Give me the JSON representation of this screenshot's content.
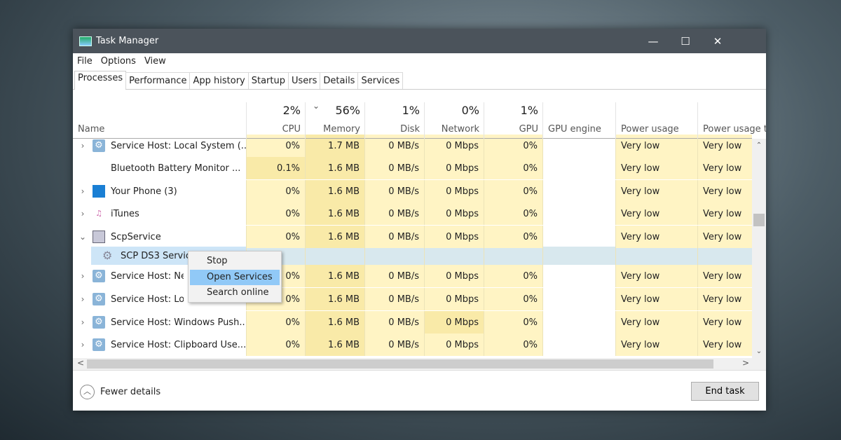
{
  "window": {
    "title": "Task Manager",
    "minimize": "—",
    "maximize": "☐",
    "close": "✕"
  },
  "menu": [
    "File",
    "Options",
    "View"
  ],
  "tabs": [
    "Processes",
    "Performance",
    "App history",
    "Startup",
    "Users",
    "Details",
    "Services"
  ],
  "active_tab": "Processes",
  "columns": [
    {
      "key": "name",
      "label": "Name",
      "pct": ""
    },
    {
      "key": "cpu",
      "label": "CPU",
      "pct": "2%"
    },
    {
      "key": "memory",
      "label": "Memory",
      "pct": "56%",
      "sorted": true
    },
    {
      "key": "disk",
      "label": "Disk",
      "pct": "1%"
    },
    {
      "key": "network",
      "label": "Network",
      "pct": "0%"
    },
    {
      "key": "gpu",
      "label": "GPU",
      "pct": "1%"
    },
    {
      "key": "gpu_engine",
      "label": "GPU engine",
      "pct": ""
    },
    {
      "key": "power",
      "label": "Power usage",
      "pct": ""
    },
    {
      "key": "power_trend",
      "label": "Power usage t",
      "pct": ""
    }
  ],
  "rows": [
    {
      "name": "Service Host: Local System (...",
      "expand": ">",
      "icon": "gear-icon",
      "cpu": "0%",
      "memory": "1.7 MB",
      "disk": "0 MB/s",
      "network": "0 Mbps",
      "gpu": "0%",
      "power": "Very low",
      "power_trend": "Very low"
    },
    {
      "name": "Bluetooth Battery Monitor ...",
      "expand": "",
      "icon": "blank-icon",
      "cpu": "0.1%",
      "memory": "1.6 MB",
      "disk": "0 MB/s",
      "network": "0 Mbps",
      "gpu": "0%",
      "power": "Very low",
      "power_trend": "Very low"
    },
    {
      "name": "Your Phone (3)",
      "expand": ">",
      "icon": "your-phone-icon",
      "cpu": "0%",
      "memory": "1.6 MB",
      "disk": "0 MB/s",
      "network": "0 Mbps",
      "gpu": "0%",
      "power": "Very low",
      "power_trend": "Very low"
    },
    {
      "name": "iTunes",
      "expand": ">",
      "icon": "itunes-icon",
      "cpu": "0%",
      "memory": "1.6 MB",
      "disk": "0 MB/s",
      "network": "0 Mbps",
      "gpu": "0%",
      "power": "Very low",
      "power_trend": "Very low"
    },
    {
      "name": "ScpService",
      "expand": "v",
      "icon": "scp-icon",
      "cpu": "0%",
      "memory": "1.6 MB",
      "disk": "0 MB/s",
      "network": "0 Mbps",
      "gpu": "0%",
      "power": "Very low",
      "power_trend": "Very low"
    },
    {
      "name": "SCP DS3 Service",
      "expand": "",
      "icon": "service-gears-icon",
      "child": true,
      "selected": true,
      "cpu": "",
      "memory": "",
      "disk": "",
      "network": "",
      "gpu": "",
      "power": "",
      "power_trend": ""
    },
    {
      "name": "Service Host: Network Service",
      "expand": ">",
      "icon": "gear-icon",
      "cpu": "0%",
      "memory": "1.6 MB",
      "disk": "0 MB/s",
      "network": "0 Mbps",
      "gpu": "0%",
      "power": "Very low",
      "power_trend": "Very low"
    },
    {
      "name": "Service Host: Local Service",
      "expand": ">",
      "icon": "gear-icon",
      "cpu": "0%",
      "memory": "1.6 MB",
      "disk": "0 MB/s",
      "network": "0 Mbps",
      "gpu": "0%",
      "power": "Very low",
      "power_trend": "Very low"
    },
    {
      "name": "Service Host: Windows Push...",
      "expand": ">",
      "icon": "gear-icon",
      "cpu": "0%",
      "memory": "1.6 MB",
      "disk": "0 MB/s",
      "network": "0 Mbps",
      "gpu": "0%",
      "power": "Very low",
      "power_trend": "Very low"
    },
    {
      "name": "Service Host: Clipboard Use...",
      "expand": ">",
      "icon": "gear-icon",
      "cpu": "0%",
      "memory": "1.6 MB",
      "disk": "0 MB/s",
      "network": "0 Mbps",
      "gpu": "0%",
      "power": "Very low",
      "power_trend": "Very low"
    }
  ],
  "context_menu": {
    "items": [
      "Stop",
      "Open Services",
      "Search online"
    ],
    "highlighted": "Open Services"
  },
  "footer": {
    "fewer_details": "Fewer details",
    "end_task": "End task"
  },
  "colors": {
    "titlebar": "#4b535b",
    "heat_light": "#fff4c4",
    "heat_mid": "#f9eaa8",
    "selection": "#cde5f7",
    "menu_highlight": "#91c9f7"
  }
}
